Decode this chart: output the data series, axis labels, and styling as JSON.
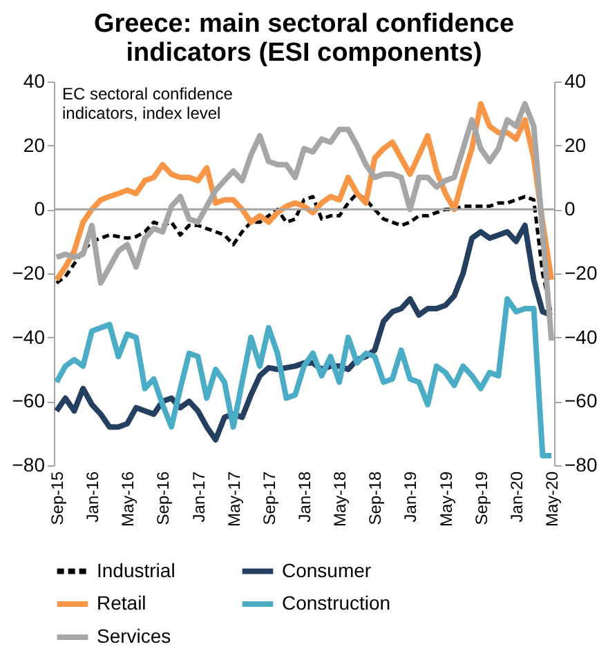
{
  "chart_data": {
    "type": "line",
    "title": "Greece: main sectoral confidence\nindicators (ESI components)",
    "categories": [
      "Sep-15",
      null,
      null,
      null,
      "Jan-16",
      null,
      null,
      null,
      "May-16",
      null,
      null,
      null,
      "Sep-16",
      null,
      null,
      null,
      "Jan-17",
      null,
      null,
      null,
      "May-17",
      null,
      null,
      null,
      "Sep-17",
      null,
      null,
      null,
      "Jan-18",
      null,
      null,
      null,
      "May-18",
      null,
      null,
      null,
      "Sep-18",
      null,
      null,
      null,
      "Jan-19",
      null,
      null,
      null,
      "May-19",
      null,
      null,
      null,
      "Sep-19",
      null,
      null,
      null,
      "Jan-20",
      null,
      null,
      null,
      "May-20"
    ],
    "series": [
      {
        "name": "Industrial",
        "color": "#000000",
        "line_style": "dashed",
        "values": [
          -23,
          -21,
          -17,
          -13,
          -10,
          -9,
          -8,
          -8.5,
          -9,
          -8.5,
          -7,
          -4,
          -5,
          -4,
          -8,
          -5,
          -5,
          -6,
          -7,
          -8,
          -11,
          -7,
          -4,
          -4,
          -2,
          0,
          -4,
          -3,
          3,
          4,
          -3,
          -2,
          -2,
          2,
          5,
          3,
          0,
          -3,
          -4,
          -5,
          -4,
          -2,
          -2,
          -1,
          0,
          0,
          1,
          1,
          1,
          1,
          2,
          2,
          3,
          4,
          3,
          -20,
          -33
        ]
      },
      {
        "name": "Consumer",
        "color": "#243f60",
        "line_style": "solid",
        "values": [
          -63,
          -59,
          -63,
          -56,
          -61,
          -64,
          -68,
          -68,
          -67,
          -62,
          -63,
          -64,
          -60,
          -59,
          -62,
          -60,
          -63,
          -68,
          -72,
          -65,
          -64,
          -65,
          -58,
          -52,
          -49.5,
          -50,
          -49.5,
          -49,
          -48,
          -48,
          -50,
          -49,
          -49,
          -50,
          -47,
          -46,
          -44,
          -35,
          -32,
          -31,
          -28,
          -33,
          -31,
          -31,
          -30,
          -27,
          -20,
          -9,
          -7,
          -9,
          -8,
          -7,
          -10,
          -5,
          -22,
          -32,
          -33
        ]
      },
      {
        "name": "Retail",
        "color": "#f79646",
        "line_style": "solid",
        "values": [
          -22,
          -18,
          -13,
          -4,
          0,
          3,
          4,
          5,
          6,
          5,
          9,
          10,
          14,
          11,
          10,
          10,
          9,
          13,
          2,
          3,
          3,
          0,
          -4,
          -2,
          -4,
          -1,
          1,
          2,
          1,
          -1,
          2,
          4,
          3,
          10,
          5,
          2,
          16,
          19,
          21,
          16,
          11,
          17,
          23,
          12,
          5,
          0,
          10,
          19,
          33,
          26,
          24,
          24,
          22,
          28,
          16,
          -4,
          -22
        ]
      },
      {
        "name": "Construction",
        "color": "#4bacc6",
        "line_style": "solid",
        "values": [
          -54,
          -49,
          -47,
          -49,
          -38,
          -37,
          -36,
          -46,
          -39,
          -40,
          -56,
          -53,
          -61,
          -68,
          -56,
          -45,
          -46,
          -59,
          -50,
          -54,
          -68,
          -54,
          -40,
          -49,
          -37,
          -45,
          -59,
          -58,
          -49,
          -45,
          -52,
          -46,
          -54,
          -40,
          -48,
          -45,
          -46,
          -54,
          -53,
          -44,
          -53,
          -54,
          -61,
          -49,
          -51,
          -55,
          -49,
          -52,
          -56,
          -51,
          -52,
          -28,
          -32,
          -31,
          -31,
          -77,
          -77
        ]
      },
      {
        "name": "Services",
        "color": "#a6a6a6",
        "line_style": "solid",
        "values": [
          -15,
          -14,
          -15,
          -14,
          -5,
          -23,
          -18,
          -13,
          -11,
          -18,
          -9,
          -6,
          -7,
          1,
          4,
          -3,
          -4,
          1,
          6,
          9,
          12,
          9,
          17,
          23,
          15,
          14,
          14,
          10,
          19,
          18,
          22,
          21,
          25,
          25,
          20,
          14,
          10,
          11,
          11,
          10,
          0,
          10,
          10,
          7,
          9,
          10,
          19,
          28,
          19,
          15,
          19,
          28,
          26,
          33,
          26,
          -7,
          -41
        ]
      }
    ],
    "ylim": [
      -80,
      40
    ],
    "yticks": [
      -80,
      -60,
      -40,
      -20,
      0,
      20,
      40
    ],
    "y2lim": [
      -80,
      40
    ],
    "y2ticks": [
      -80,
      -60,
      -40,
      -20,
      0,
      20,
      40
    ],
    "ref_lines": [
      {
        "axis": "y",
        "value": 0,
        "color": "#a6a6a6"
      }
    ],
    "annotations": [
      "EC sectoral confidence\nindicators, index level"
    ],
    "grid": false,
    "legend": "bottom"
  }
}
